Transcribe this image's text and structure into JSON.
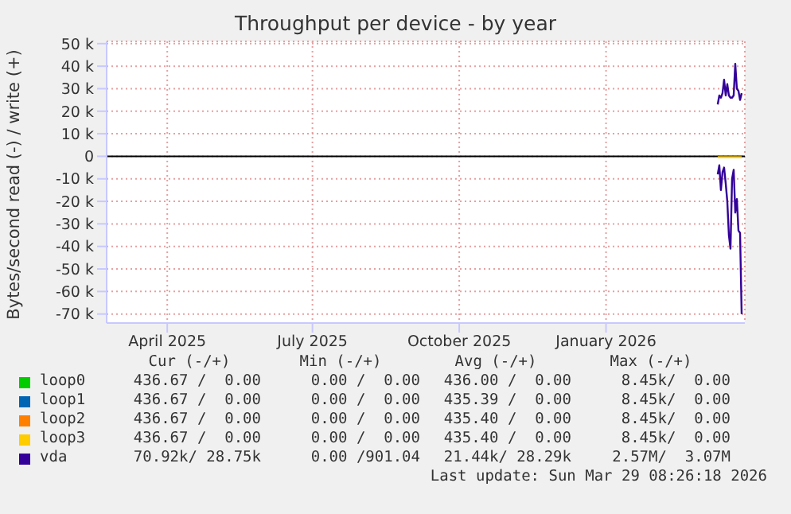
{
  "chart_data": {
    "type": "line",
    "title": "Throughput per device - by year",
    "ylabel": "Bytes/second read (-) / write (+)",
    "xlim": [
      "2025-02-22",
      "2026-03-29"
    ],
    "xticks": [
      {
        "value": "2025-04-01",
        "label": "April 2025"
      },
      {
        "value": "2025-07-01",
        "label": "July 2025"
      },
      {
        "value": "2025-10-01",
        "label": "October 2025"
      },
      {
        "value": "2026-01-01",
        "label": "January 2026"
      }
    ],
    "ylim": [
      -74000,
      51000
    ],
    "yticks": [
      {
        "value": 50000,
        "label": "50 k"
      },
      {
        "value": 40000,
        "label": "40 k"
      },
      {
        "value": 30000,
        "label": "30 k"
      },
      {
        "value": 20000,
        "label": "20 k"
      },
      {
        "value": 10000,
        "label": "10 k"
      },
      0,
      {
        "value": -10000,
        "label": "-10 k"
      },
      {
        "value": -20000,
        "label": "-20 k"
      },
      {
        "value": -30000,
        "label": "-30 k"
      },
      {
        "value": -40000,
        "label": "-40 k"
      },
      {
        "value": -50000,
        "label": "-50 k"
      },
      {
        "value": -60000,
        "label": "-60 k"
      },
      {
        "value": -70000,
        "label": "-70 k"
      }
    ],
    "x": [
      "2026-03-12",
      "2026-03-13",
      "2026-03-14",
      "2026-03-15",
      "2026-03-16",
      "2026-03-17",
      "2026-03-18",
      "2026-03-19",
      "2026-03-20",
      "2026-03-21",
      "2026-03-22",
      "2026-03-23",
      "2026-03-24",
      "2026-03-25",
      "2026-03-26",
      "2026-03-27"
    ],
    "series": [
      {
        "name": "loop0",
        "color": "#00cc00",
        "values": [
          null,
          null,
          null,
          null,
          null,
          null,
          null,
          null,
          null,
          null,
          null,
          null,
          null,
          null,
          null,
          null
        ]
      },
      {
        "name": "loop1",
        "color": "#0066b3",
        "values": [
          null,
          null,
          null,
          null,
          null,
          null,
          null,
          null,
          null,
          null,
          null,
          null,
          null,
          null,
          null,
          null
        ]
      },
      {
        "name": "loop2",
        "color": "#ff8000",
        "values": [
          null,
          null,
          null,
          null,
          null,
          null,
          null,
          null,
          null,
          null,
          null,
          null,
          null,
          null,
          null,
          null
        ]
      },
      {
        "name": "loop3",
        "color": "#ffcc00",
        "values": [
          -400,
          -400,
          -400,
          -400,
          -400,
          -400,
          -400,
          -400,
          -400,
          -400,
          -400,
          -400,
          -400,
          -400,
          -400,
          -400
        ]
      },
      {
        "name": "vda",
        "color": "#330099",
        "values": [
          23000,
          27000,
          26000,
          28000,
          34000,
          27000,
          32000,
          27000,
          26000,
          26000,
          27000,
          41000,
          30000,
          29000,
          25000,
          28000
        ]
      },
      {
        "color": "#330099",
        "values": [
          -8000,
          -4000,
          -15000,
          -7000,
          -5000,
          -12000,
          -20000,
          -35000,
          -41000,
          -10000,
          -6000,
          -25000,
          -19000,
          -33000,
          -34000,
          -70000
        ]
      }
    ],
    "grid": true,
    "legend": "bottom",
    "marker": "none",
    "line_style": "solid",
    "annotations": [
      "Cur (-/+)",
      "Min (-/+)",
      "Avg (-/+)",
      "Max (-/+)",
      "436.67 /  0.00",
      "0.00 /  0.00",
      "436.00 /  0.00",
      "8.45k/  0.00",
      "436.67 /  0.00",
      "0.00 /  0.00",
      "435.39 /  0.00",
      "8.45k/  0.00",
      "436.67 /  0.00",
      "0.00 /  0.00",
      "435.40 /  0.00",
      "8.45k/  0.00",
      "436.67 /  0.00",
      "0.00 /  0.00",
      "435.40 /  0.00",
      "8.45k/  0.00",
      "70.92k/ 28.75k",
      "0.00 /901.04",
      "21.44k/ 28.29k",
      "2.57M/  3.07M",
      "Last update: Sun Mar 29 08:26:18 2026"
    ]
  }
}
